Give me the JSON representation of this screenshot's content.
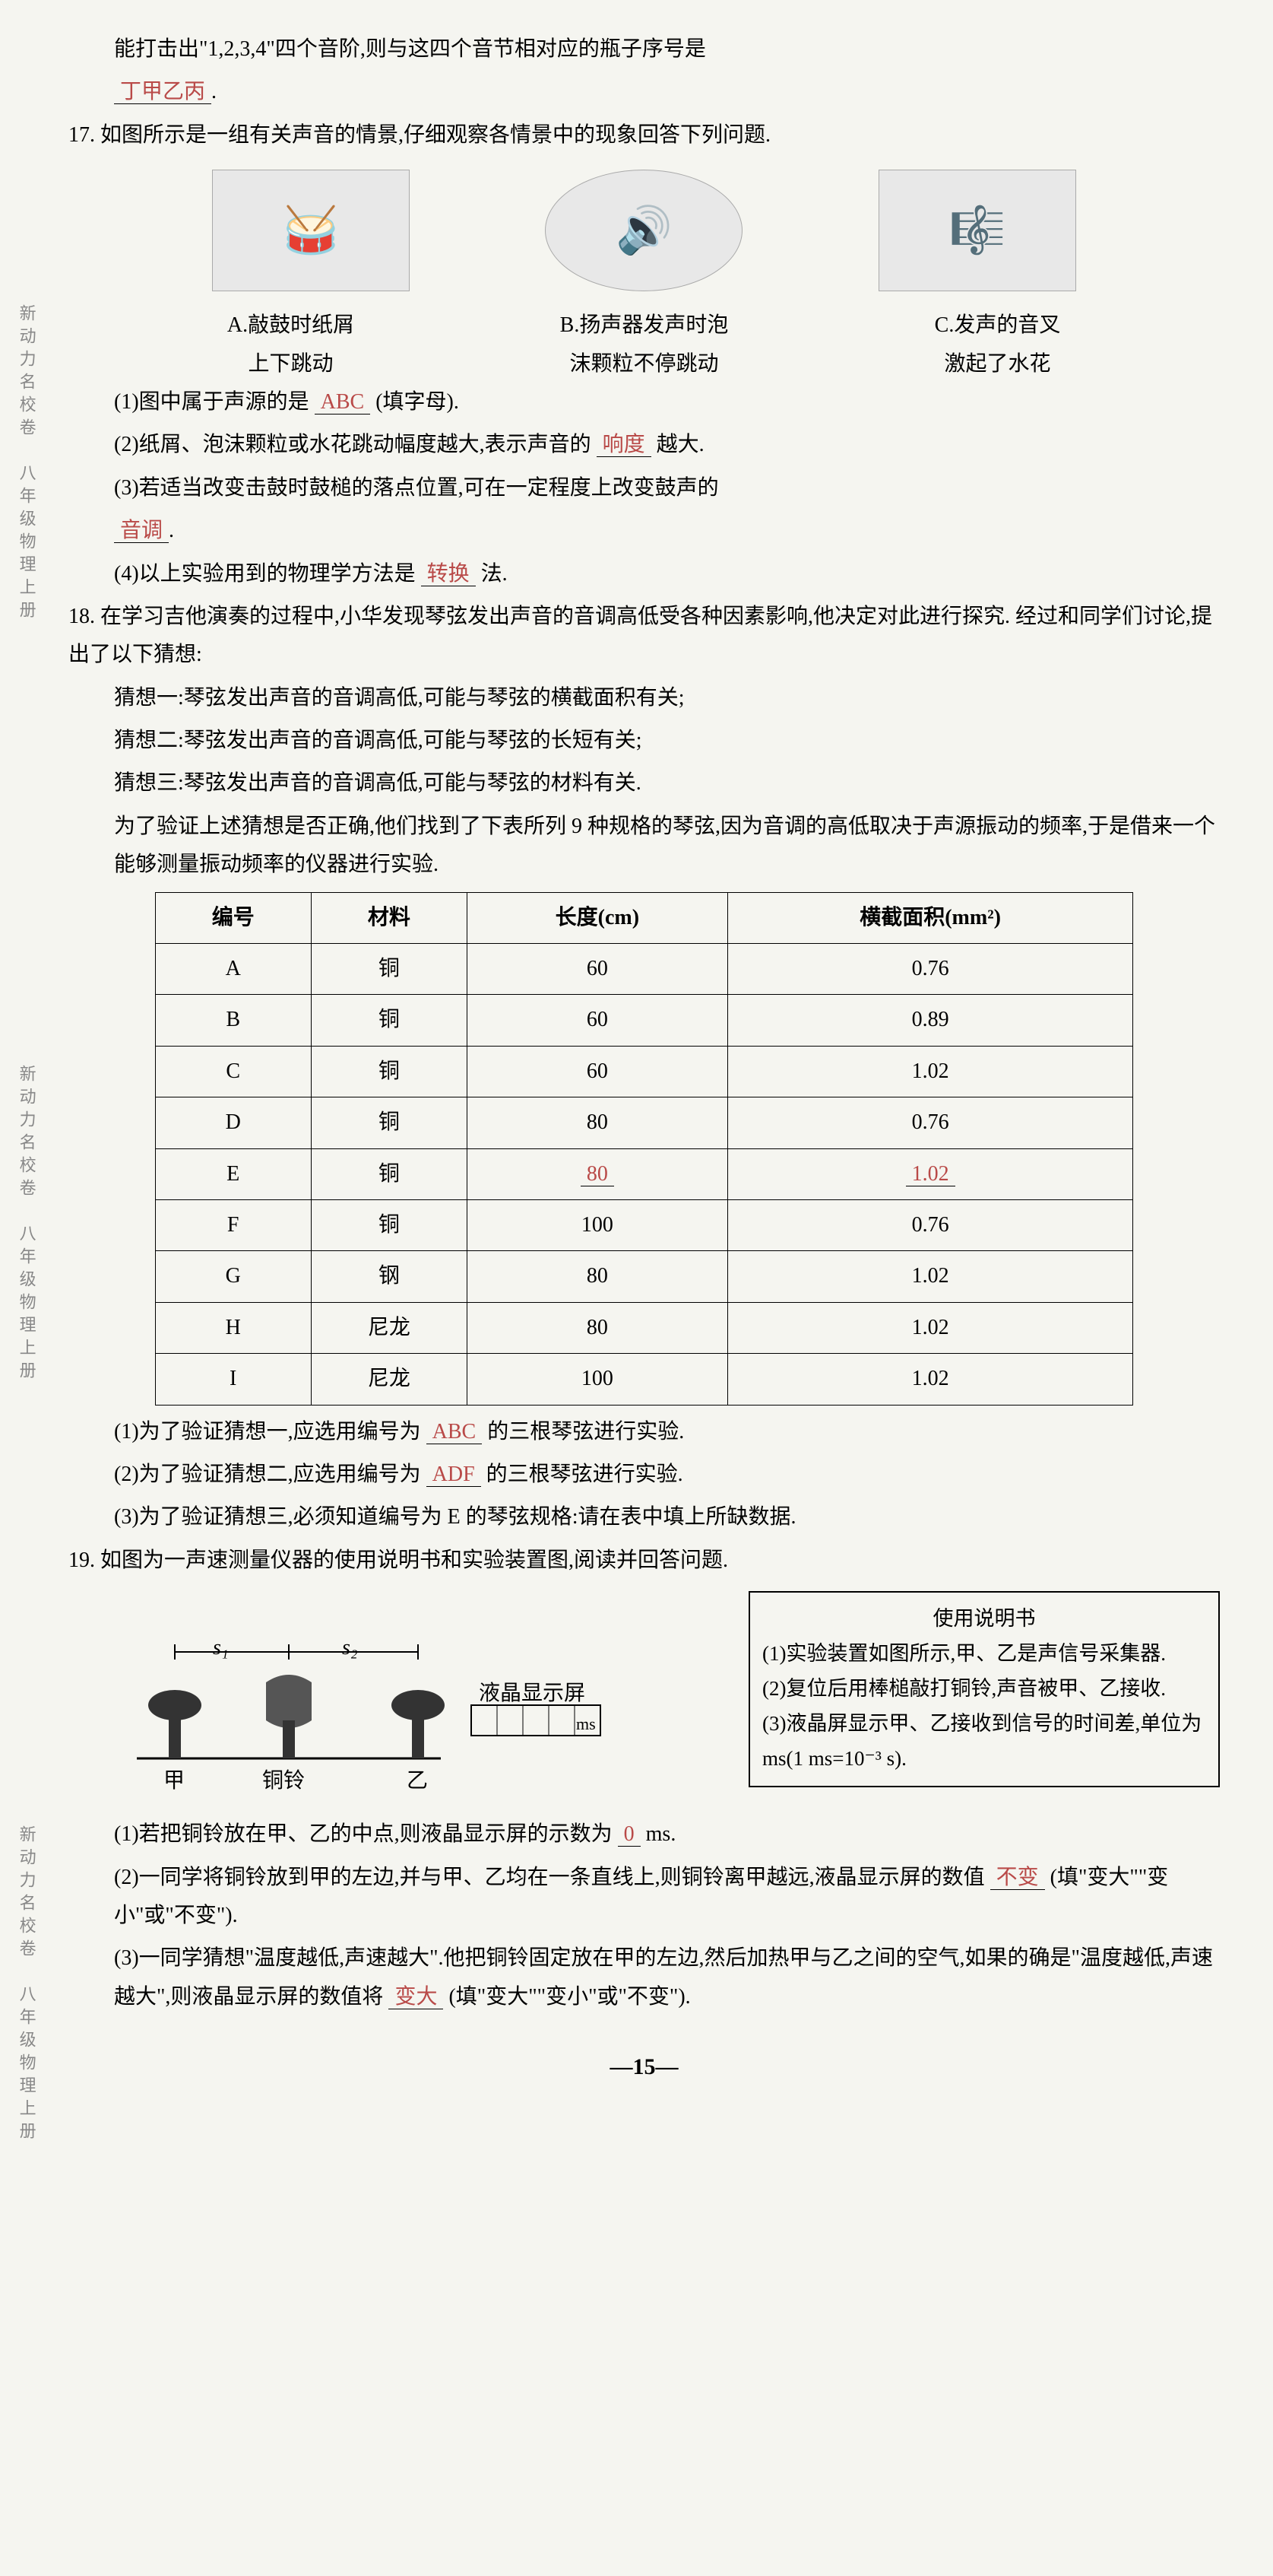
{
  "side_label": "新动力名校卷　八年级物理上册",
  "page_number": "—15—",
  "q16_tail": "能打击出\"1,2,3,4\"四个音阶,则与这四个音节相对应的瓶子序号是",
  "q16_answer": "丁甲乙丙",
  "q17": {
    "stem": "17. 如图所示是一组有关声音的情景,仔细观察各情景中的现象回答下列问题.",
    "captions": {
      "a1": "A.敲鼓时纸屑",
      "a2": "上下跳动",
      "b1": "B.扬声器发声时泡",
      "b2": "沫颗粒不停跳动",
      "c1": "C.发声的音叉",
      "c2": "激起了水花"
    },
    "p1": "(1)图中属于声源的是",
    "p1_ans": "ABC",
    "p1_tail": "(填字母).",
    "p2": "(2)纸屑、泡沫颗粒或水花跳动幅度越大,表示声音的",
    "p2_ans": "响度",
    "p2_tail": "越大.",
    "p3": "(3)若适当改变击鼓时鼓槌的落点位置,可在一定程度上改变鼓声的",
    "p3_ans": "音调",
    "p4": "(4)以上实验用到的物理学方法是",
    "p4_ans": "转换",
    "p4_tail": "法."
  },
  "q18": {
    "stem1": "18. 在学习吉他演奏的过程中,小华发现琴弦发出声音的音调高低受各种因素影响,他决定对此进行探究. 经过和同学们讨论,提出了以下猜想:",
    "g1": "猜想一:琴弦发出声音的音调高低,可能与琴弦的横截面积有关;",
    "g2": "猜想二:琴弦发出声音的音调高低,可能与琴弦的长短有关;",
    "g3": "猜想三:琴弦发出声音的音调高低,可能与琴弦的材料有关.",
    "stem2": "为了验证上述猜想是否正确,他们找到了下表所列 9 种规格的琴弦,因为音调的高低取决于声源振动的频率,于是借来一个能够测量振动频率的仪器进行实验.",
    "headers": [
      "编号",
      "材料",
      "长度(cm)",
      "横截面积(mm²)"
    ],
    "rows": [
      {
        "id": "A",
        "mat": "铜",
        "len": "60",
        "area": "0.76"
      },
      {
        "id": "B",
        "mat": "铜",
        "len": "60",
        "area": "0.89"
      },
      {
        "id": "C",
        "mat": "铜",
        "len": "60",
        "area": "1.02"
      },
      {
        "id": "D",
        "mat": "铜",
        "len": "80",
        "area": "0.76"
      },
      {
        "id": "E",
        "mat": "铜",
        "len": "80",
        "area": "1.02",
        "len_is_ans": true,
        "area_is_ans": true
      },
      {
        "id": "F",
        "mat": "铜",
        "len": "100",
        "area": "0.76"
      },
      {
        "id": "G",
        "mat": "钢",
        "len": "80",
        "area": "1.02"
      },
      {
        "id": "H",
        "mat": "尼龙",
        "len": "80",
        "area": "1.02"
      },
      {
        "id": "I",
        "mat": "尼龙",
        "len": "100",
        "area": "1.02"
      }
    ],
    "p1": "(1)为了验证猜想一,应选用编号为",
    "p1_ans": "ABC",
    "p1_tail": "的三根琴弦进行实验.",
    "p2": "(2)为了验证猜想二,应选用编号为",
    "p2_ans": "ADF",
    "p2_tail": "的三根琴弦进行实验.",
    "p3": "(3)为了验证猜想三,必须知道编号为 E 的琴弦规格:请在表中填上所缺数据."
  },
  "q19": {
    "stem": "19. 如图为一声速测量仪器的使用说明书和实验装置图,阅读并回答问题.",
    "manual_title": "使用说明书",
    "m1": "(1)实验装置如图所示,甲、乙是声信号采集器.",
    "m2": "(2)复位后用棒槌敲打铜铃,声音被甲、乙接收.",
    "m3": "(3)液晶屏显示甲、乙接收到信号的时间差,单位为ms(1 ms=10⁻³ s).",
    "labels": {
      "jia": "甲",
      "tongling": "铜铃",
      "yi": "乙",
      "s1": "s₁",
      "s2": "s₂",
      "lcd": "液晶显示屏",
      "ms": "ms"
    },
    "p1": "(1)若把铜铃放在甲、乙的中点,则液晶显示屏的示数为",
    "p1_ans": "0",
    "p1_tail": "ms.",
    "p2a": "(2)一同学将铜铃放到甲的左边,并与甲、乙均在一条直线上,则铜铃离甲越远,液晶显示屏的数值",
    "p2_ans": "不变",
    "p2_tail": "(填\"变大\"\"变小\"或\"不变\").",
    "p3a": "(3)一同学猜想\"温度越低,声速越大\".他把铜铃固定放在甲的左边,然后加热甲与乙之间的空气,如果的确是\"温度越低,声速越大\",则液晶显示屏的数值将",
    "p3_ans": "变大",
    "p3_tail": "(填\"变大\"\"变小\"或\"不变\")."
  }
}
